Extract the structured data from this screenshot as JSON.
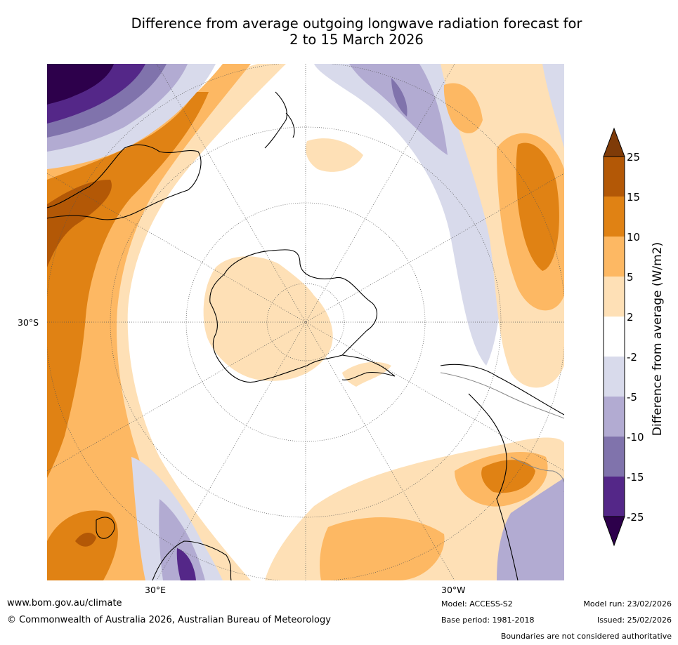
{
  "title": {
    "line1": "Difference from average outgoing longwave radiation forecast for",
    "line2": "2 to 15 March 2026"
  },
  "map": {
    "projection": "south-polar-stereographic",
    "lat_label": "30°S",
    "lon_labels": [
      "30°E",
      "30°W"
    ],
    "region_notes": [
      "Antarctica",
      "Australia",
      "New Zealand",
      "South America",
      "Southern Africa"
    ]
  },
  "legend": {
    "label": "Difference from average (W/m2)",
    "ticks": [
      "25",
      "15",
      "10",
      "5",
      "2",
      "-2",
      "-5",
      "-10",
      "-15",
      "-25"
    ],
    "colors": [
      "#7f3b08",
      "#b35806",
      "#e08214",
      "#fdb863",
      "#fee0b6",
      "#ffffff",
      "#d8daeb",
      "#b2abd2",
      "#8073ac",
      "#542788",
      "#2d004b"
    ]
  },
  "footer": {
    "site": "www.bom.gov.au/climate",
    "copyright": "© Commonwealth of Australia 2026, Australian Bureau of Meteorology",
    "model": "Model: ACCESS-S2",
    "base_period": "Base period: 1981-2018",
    "model_run": "Model run: 23/02/2026",
    "issued": "Issued: 25/02/2026",
    "disclaimer": "Boundaries are not considered authoritative"
  }
}
